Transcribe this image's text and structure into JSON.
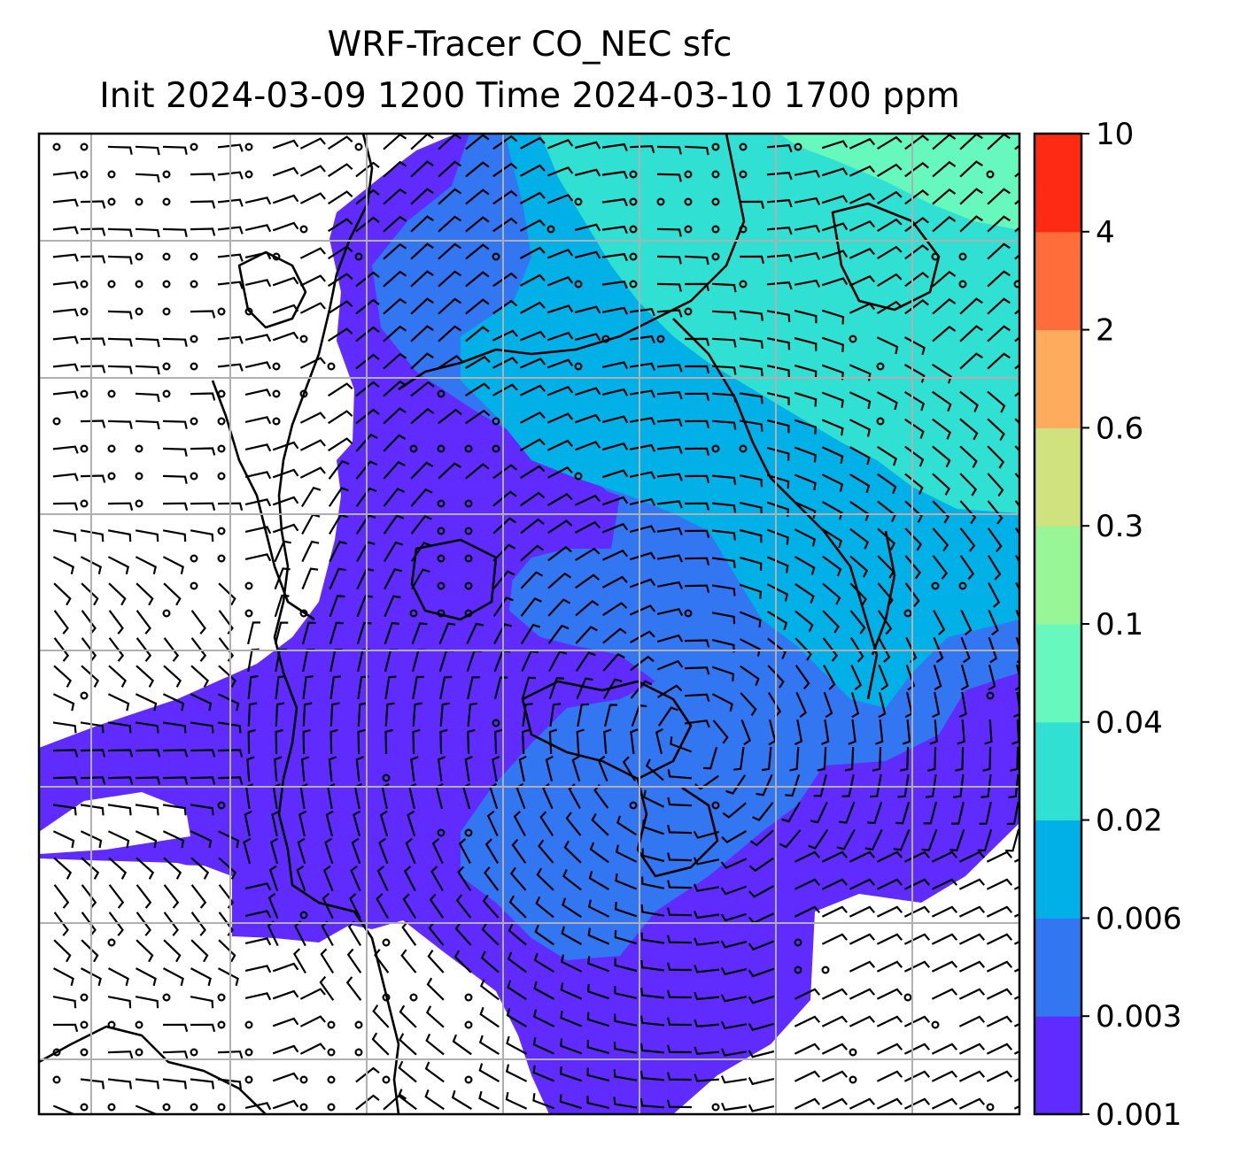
{
  "title": {
    "line1": "WRF-Tracer CO_NEC sfc",
    "line2": "Init 2024-03-09 1200 Time 2024-03-10 1700 ppm"
  },
  "colorbar": {
    "unit": "ppm",
    "levels": [
      "0.001",
      "0.003",
      "0.006",
      "0.02",
      "0.04",
      "0.1",
      "0.3",
      "0.6",
      "2",
      "4",
      "10"
    ],
    "colors": [
      "#5f2bff",
      "#3276f2",
      "#00b0e6",
      "#30e0d2",
      "#66f8bc",
      "#98f696",
      "#d0e27e",
      "#ffab5e",
      "#ff6d3a",
      "#ff2a14"
    ]
  },
  "map": {
    "field_colors": {
      "below_min": "#ffffff",
      "purple": "#5f2bff",
      "blue": "#3276f2",
      "cyan": "#00b0e6",
      "teal": "#30e0d2",
      "aqua": "#66f8bc"
    },
    "gridlines": true,
    "gridline_color": "#b0b0b0",
    "coastline_color": "#000000",
    "wind_barb_color": "#000000"
  }
}
